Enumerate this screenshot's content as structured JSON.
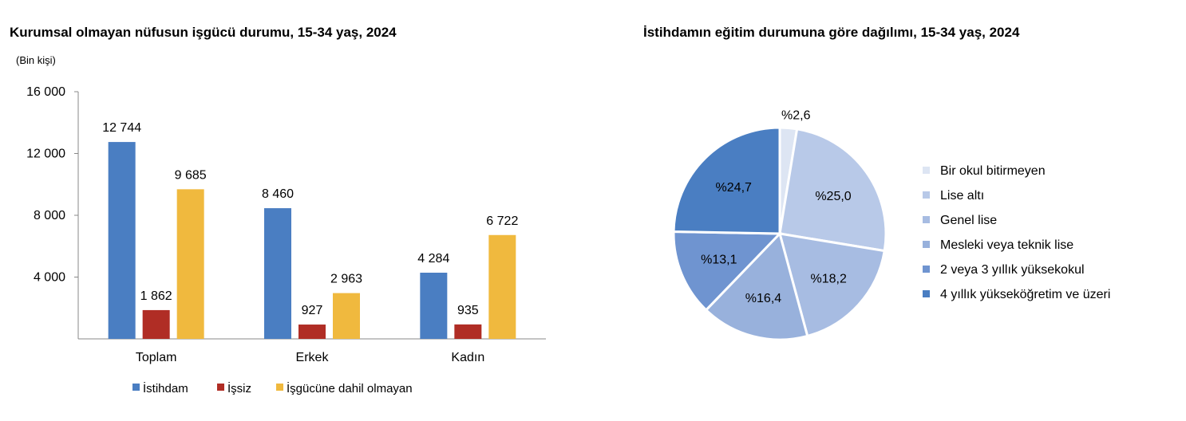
{
  "chart_data": [
    {
      "type": "bar",
      "title": "Kurumsal olmayan nüfusun işgücü durumu, 15-34 yaş, 2024",
      "ylabel": "(Bin kişi)",
      "xlabel": "",
      "categories": [
        "Toplam",
        "Erkek",
        "Kadın"
      ],
      "ylim": [
        0,
        16000
      ],
      "yticks": [
        4000,
        8000,
        12000,
        16000
      ],
      "ytick_labels": [
        "4 000",
        "8 000",
        "12 000",
        "16 000"
      ],
      "series": [
        {
          "name": "İstihdam",
          "color": "#4a7ec2",
          "values": [
            12744,
            8460,
            4284
          ],
          "labels": [
            "12 744",
            "8 460",
            "4 284"
          ]
        },
        {
          "name": "İşsiz",
          "color": "#b02d25",
          "values": [
            1862,
            927,
            935
          ],
          "labels": [
            "1 862",
            "927",
            "935"
          ]
        },
        {
          "name": "İşgücüne dahil olmayan",
          "color": "#f0b93e",
          "values": [
            9685,
            2963,
            6722
          ],
          "labels": [
            "9 685",
            "2 963",
            "6 722"
          ]
        }
      ],
      "grid": false,
      "legend": "bottom"
    },
    {
      "type": "pie",
      "title": "İstihdamın eğitim durumuna göre dağılımı, 15-34 yaş, 2024",
      "slices": [
        {
          "name": "Bir okul bitirmeyen",
          "value": 2.6,
          "label": "%2,6",
          "color": "#dde5f3"
        },
        {
          "name": "Lise altı",
          "value": 25.0,
          "label": "%25,0",
          "color": "#b8c9e8"
        },
        {
          "name": "Genel lise",
          "value": 18.2,
          "label": "%18,2",
          "color": "#a7bce2"
        },
        {
          "name": "Mesleki veya teknik lise",
          "value": 16.4,
          "label": "%16,4",
          "color": "#98b1dc"
        },
        {
          "name": "2 veya 3 yıllık yüksekokul",
          "value": 13.1,
          "label": "%13,1",
          "color": "#6f94d0"
        },
        {
          "name": "4 yıllık yükseköğretim ve üzeri",
          "value": 24.7,
          "label": "%24,7",
          "color": "#4a7ec2"
        }
      ],
      "legend": "right"
    }
  ]
}
